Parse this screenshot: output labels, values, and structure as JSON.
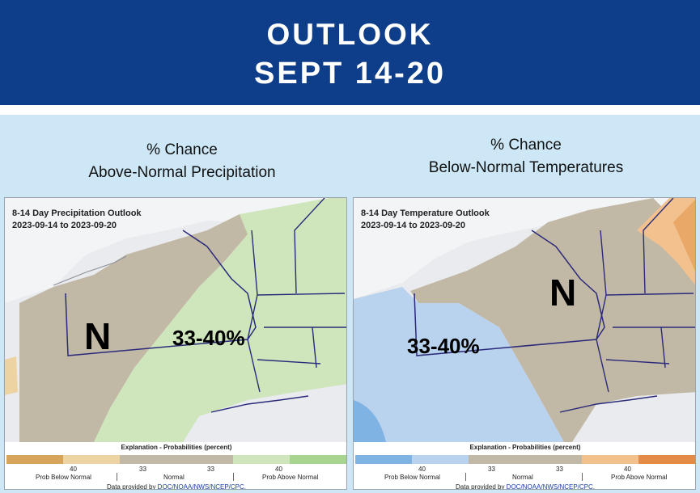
{
  "header": {
    "line1": "OUTLOOK",
    "line2": "SEPT 14-20"
  },
  "left": {
    "caption_line1": "% Chance",
    "caption_line2": "Above-Normal Precipitation",
    "map_title": "8-14 Day Precipitation Outlook",
    "map_dates": "2023-09-14 to 2023-09-20",
    "label_normal": "N",
    "label_range": "33-40%",
    "legend": {
      "title": "Explanation - Probabilities (percent)",
      "colors": [
        "#d6a45b",
        "#ecd3a1",
        "#c2b8a6",
        "#c2b8a6",
        "#cfe6bd",
        "#a7d48e"
      ],
      "ticks": [
        "40",
        "33",
        "33",
        "40"
      ],
      "labels": [
        "Prob Below Normal",
        "Normal",
        "Prob Above Normal"
      ],
      "source_prefix": "Data provided by ",
      "source_link": "DOC/NOAA/NWS/NCEP/CPC."
    }
  },
  "right": {
    "caption_line1": "% Chance",
    "caption_line2": "Below-Normal Temperatures",
    "map_title": "8-14 Day Temperature Outlook",
    "map_dates": "2023-09-14 to 2023-09-20",
    "label_normal": "N",
    "label_range": "33-40%",
    "legend": {
      "title": "Explanation - Probabilities (percent)",
      "colors": [
        "#7fb3e3",
        "#b9d3ee",
        "#c2b8a6",
        "#c2b8a6",
        "#f2c18e",
        "#e48c47"
      ],
      "ticks": [
        "40",
        "33",
        "33",
        "40"
      ],
      "labels": [
        "Prob Below Normal",
        "Normal",
        "Prob Above Normal"
      ],
      "source_prefix": "Data provided by ",
      "source_link": "DOC/NOAA/NWS/NCEP/CPC."
    }
  },
  "colors": {
    "header_bg": "#0e3e8a",
    "band_bg": "#cde7f6",
    "normal": "#c2b8a6",
    "above_precip": "#cfe6bd",
    "below_temp": "#b9d3ee"
  }
}
